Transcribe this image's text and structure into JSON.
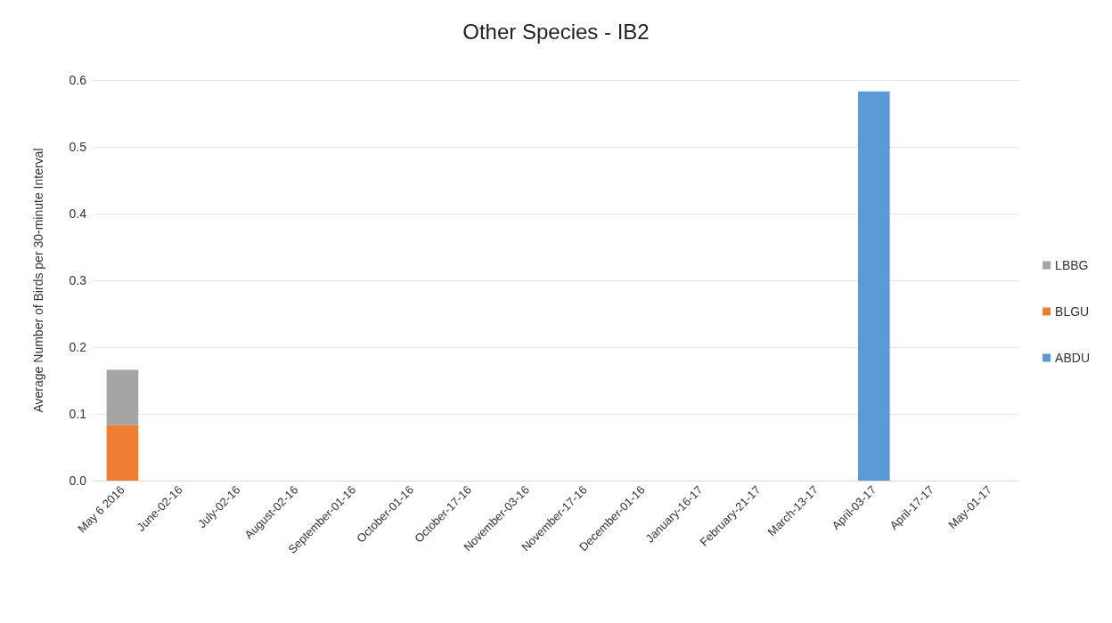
{
  "chart_data": {
    "type": "bar",
    "title": "Other Species - IB2",
    "ylabel": "Average Number of Birds per 30-minute Interval",
    "categories": [
      "May 6 2016",
      "June-02-16",
      "July-02-16",
      "August-02-16",
      "September-01-16",
      "October-01-16",
      "October-17-16",
      "November-03-16",
      "November-17-16",
      "December-01-16",
      "January-16-17",
      "February-21-17",
      "March-13-17",
      "April-03-17",
      "April-17-17",
      "May-01-17"
    ],
    "series": [
      {
        "name": "ABDU",
        "color": "#5b9bd5",
        "values": [
          0,
          0,
          0,
          0,
          0,
          0,
          0,
          0,
          0,
          0,
          0,
          0,
          0,
          0.583,
          0,
          0
        ]
      },
      {
        "name": "BLGU",
        "color": "#ed7d31",
        "values": [
          0.083,
          0,
          0,
          0,
          0,
          0,
          0,
          0,
          0,
          0,
          0,
          0,
          0,
          0,
          0,
          0
        ]
      },
      {
        "name": "LBBG",
        "color": "#a5a5a5",
        "values": [
          0.083,
          0,
          0,
          0,
          0,
          0,
          0,
          0,
          0,
          0,
          0,
          0,
          0,
          0,
          0,
          0
        ]
      }
    ],
    "stacked": true,
    "ylim": [
      0,
      0.6
    ],
    "yticks": [
      {
        "value": 0,
        "label": "0.0"
      },
      0.1,
      0.2,
      0.3,
      0.4,
      0.5,
      0.6
    ],
    "grid": "y",
    "legend": "right"
  }
}
